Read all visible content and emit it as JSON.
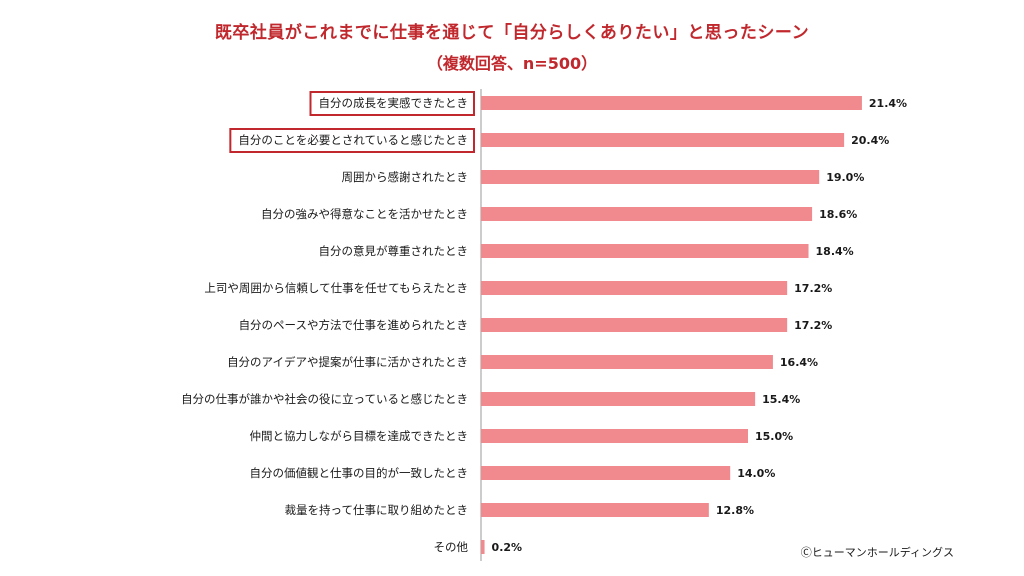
{
  "title": "既卒社員がこれまでに仕事を通じて「自分らしくありたい」と思ったシーン",
  "subtitle": "（複数回答、n=500）",
  "copyright": "Ⓒヒューマンホールディングス",
  "colors": {
    "title": "#c0282d",
    "bar": "#f08a8e",
    "highlight_box": "#c0282d",
    "axis": "#9a9a9a"
  },
  "chart_data": {
    "type": "bar",
    "orientation": "horizontal",
    "title": "既卒社員がこれまでに仕事を通じて「自分らしくありたい」と思ったシーン",
    "subtitle": "（複数回答、n=500）",
    "unit": "%",
    "categories": [
      "自分の成長を実感できたとき",
      "自分のことを必要とされていると感じたとき",
      "周囲から感謝されたとき",
      "自分の強みや得意なことを活かせたとき",
      "自分の意見が尊重されたとき",
      "上司や周囲から信頼して仕事を任せてもらえたとき",
      "自分のペースや方法で仕事を進められたとき",
      "自分のアイデアや提案が仕事に活かされたとき",
      "自分の仕事が誰かや社会の役に立っていると感じたとき",
      "仲間と協力しながら目標を達成できたとき",
      "自分の価値観と仕事の目的が一致したとき",
      "裁量を持って仕事に取り組めたとき",
      "その他"
    ],
    "values": [
      21.4,
      20.4,
      19.0,
      18.6,
      18.4,
      17.2,
      17.2,
      16.4,
      15.4,
      15.0,
      14.0,
      12.8,
      0.2
    ],
    "value_labels": [
      "21.4%",
      "20.4%",
      "19.0%",
      "18.6%",
      "18.4%",
      "17.2%",
      "17.2%",
      "16.4%",
      "15.4%",
      "15.0%",
      "14.0%",
      "12.8%",
      "0.2%"
    ],
    "highlighted_categories": [
      0,
      1
    ],
    "xlim": [
      0,
      25
    ],
    "grid": false,
    "legend": "none"
  }
}
